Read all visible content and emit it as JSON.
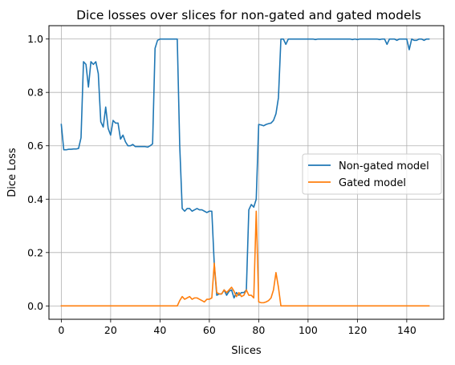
{
  "chart_data": {
    "type": "line",
    "title": "Dice losses over slices for non-gated and gated models",
    "xlabel": "Slices",
    "ylabel": "Dice Loss",
    "xlim": [
      -5,
      155
    ],
    "ylim": [
      -0.05,
      1.05
    ],
    "xticks": [
      0,
      20,
      40,
      60,
      80,
      100,
      120,
      140
    ],
    "yticks": [
      0.0,
      0.2,
      0.4,
      0.6,
      0.8,
      1.0
    ],
    "grid": true,
    "legend_position": "center-right",
    "series": [
      {
        "name": "Non-gated model",
        "color": "#1f77b4",
        "x": [
          0,
          1,
          2,
          3,
          4,
          5,
          6,
          7,
          8,
          9,
          10,
          11,
          12,
          13,
          14,
          15,
          16,
          17,
          18,
          19,
          20,
          21,
          22,
          23,
          24,
          25,
          26,
          27,
          28,
          29,
          30,
          31,
          32,
          33,
          34,
          35,
          36,
          37,
          38,
          39,
          40,
          41,
          42,
          43,
          44,
          45,
          46,
          47,
          48,
          49,
          50,
          51,
          52,
          53,
          54,
          55,
          56,
          57,
          58,
          59,
          60,
          61,
          62,
          63,
          64,
          65,
          66,
          67,
          68,
          69,
          70,
          71,
          72,
          73,
          74,
          75,
          76,
          77,
          78,
          79,
          80,
          81,
          82,
          83,
          84,
          85,
          86,
          87,
          88,
          89,
          90,
          91,
          92,
          93,
          94,
          95,
          96,
          97,
          98,
          99,
          100,
          101,
          102,
          103,
          104,
          105,
          106,
          107,
          108,
          109,
          110,
          111,
          112,
          113,
          114,
          115,
          116,
          117,
          118,
          119,
          120,
          121,
          122,
          123,
          124,
          125,
          126,
          127,
          128,
          129,
          130,
          131,
          132,
          133,
          134,
          135,
          136,
          137,
          138,
          139,
          140,
          141,
          142,
          143,
          144,
          145,
          146,
          147,
          148,
          149
        ],
        "y": [
          0.68,
          0.585,
          0.585,
          0.587,
          0.587,
          0.588,
          0.588,
          0.59,
          0.63,
          0.915,
          0.905,
          0.82,
          0.915,
          0.905,
          0.915,
          0.87,
          0.69,
          0.67,
          0.745,
          0.665,
          0.64,
          0.695,
          0.685,
          0.685,
          0.625,
          0.64,
          0.615,
          0.6,
          0.6,
          0.605,
          0.597,
          0.597,
          0.597,
          0.597,
          0.597,
          0.595,
          0.6,
          0.607,
          0.965,
          0.995,
          1.0,
          1.0,
          1.0,
          1.0,
          1.0,
          1.0,
          1.0,
          1.0,
          0.6,
          0.365,
          0.355,
          0.365,
          0.365,
          0.355,
          0.36,
          0.365,
          0.36,
          0.36,
          0.355,
          0.35,
          0.355,
          0.355,
          0.155,
          0.04,
          0.045,
          0.045,
          0.06,
          0.04,
          0.055,
          0.06,
          0.03,
          0.05,
          0.04,
          0.05,
          0.05,
          0.06,
          0.36,
          0.38,
          0.37,
          0.4,
          0.68,
          0.678,
          0.675,
          0.68,
          0.683,
          0.685,
          0.695,
          0.72,
          0.78,
          1.0,
          1.0,
          0.98,
          1.0,
          1.0,
          1.0,
          1.0,
          1.0,
          1.0,
          1.0,
          1.0,
          1.0,
          1.0,
          1.0,
          0.998,
          1.0,
          1.0,
          1.0,
          1.0,
          1.0,
          1.0,
          1.0,
          1.0,
          1.0,
          1.0,
          1.0,
          1.0,
          1.0,
          1.0,
          0.998,
          1.0,
          0.998,
          1.0,
          1.0,
          1.0,
          1.0,
          1.0,
          1.0,
          1.0,
          1.0,
          0.998,
          1.0,
          1.0,
          0.98,
          1.0,
          1.0,
          1.0,
          0.995,
          1.0,
          1.0,
          1.0,
          1.0,
          0.96,
          1.0,
          0.995,
          0.995,
          1.0,
          1.0,
          0.995,
          1.0,
          1.0
        ]
      },
      {
        "name": "Gated model",
        "color": "#ff7f0e",
        "x": [
          0,
          1,
          2,
          3,
          4,
          5,
          6,
          7,
          8,
          9,
          10,
          11,
          12,
          13,
          14,
          15,
          16,
          17,
          18,
          19,
          20,
          21,
          22,
          23,
          24,
          25,
          26,
          27,
          28,
          29,
          30,
          31,
          32,
          33,
          34,
          35,
          36,
          37,
          38,
          39,
          40,
          41,
          42,
          43,
          44,
          45,
          46,
          47,
          48,
          49,
          50,
          51,
          52,
          53,
          54,
          55,
          56,
          57,
          58,
          59,
          60,
          61,
          62,
          63,
          64,
          65,
          66,
          67,
          68,
          69,
          70,
          71,
          72,
          73,
          74,
          75,
          76,
          77,
          78,
          79,
          80,
          81,
          82,
          83,
          84,
          85,
          86,
          87,
          88,
          89,
          90,
          91,
          92,
          93,
          94,
          95,
          96,
          97,
          98,
          99,
          100,
          101,
          102,
          103,
          104,
          105,
          106,
          107,
          108,
          109,
          110,
          111,
          112,
          113,
          114,
          115,
          116,
          117,
          118,
          119,
          120,
          121,
          122,
          123,
          124,
          125,
          126,
          127,
          128,
          129,
          130,
          131,
          132,
          133,
          134,
          135,
          136,
          137,
          138,
          139,
          140,
          141,
          142,
          143,
          144,
          145,
          146,
          147,
          148,
          149
        ],
        "y": [
          0.0,
          0.0,
          0.0,
          0.0,
          0.0,
          0.0,
          0.0,
          0.0,
          0.0,
          0.0,
          0.0,
          0.0,
          0.0,
          0.0,
          0.0,
          0.0,
          0.0,
          0.0,
          0.0,
          0.0,
          0.0,
          0.0,
          0.0,
          0.0,
          0.0,
          0.0,
          0.0,
          0.0,
          0.0,
          0.0,
          0.0,
          0.0,
          0.0,
          0.0,
          0.0,
          0.0,
          0.0,
          0.0,
          0.0,
          0.0,
          0.0,
          0.0,
          0.0,
          0.0,
          0.0,
          0.0,
          0.0,
          0.0,
          0.02,
          0.035,
          0.025,
          0.03,
          0.035,
          0.025,
          0.03,
          0.03,
          0.025,
          0.02,
          0.015,
          0.025,
          0.025,
          0.03,
          0.16,
          0.05,
          0.045,
          0.045,
          0.06,
          0.05,
          0.06,
          0.07,
          0.055,
          0.035,
          0.05,
          0.035,
          0.04,
          0.06,
          0.04,
          0.04,
          0.03,
          0.355,
          0.015,
          0.012,
          0.012,
          0.015,
          0.02,
          0.03,
          0.06,
          0.125,
          0.07,
          0.0,
          0.0,
          0.0,
          0.0,
          0.0,
          0.0,
          0.0,
          0.0,
          0.0,
          0.0,
          0.0,
          0.0,
          0.0,
          0.0,
          0.0,
          0.0,
          0.0,
          0.0,
          0.0,
          0.0,
          0.0,
          0.0,
          0.0,
          0.0,
          0.0,
          0.0,
          0.0,
          0.0,
          0.0,
          0.0,
          0.0,
          0.0,
          0.0,
          0.0,
          0.0,
          0.0,
          0.0,
          0.0,
          0.0,
          0.0,
          0.0,
          0.0,
          0.0,
          0.0,
          0.0,
          0.0,
          0.0,
          0.0,
          0.0,
          0.0,
          0.0,
          0.0,
          0.0,
          0.0,
          0.0,
          0.0,
          0.0,
          0.0,
          0.0,
          0.0,
          0.0
        ]
      }
    ]
  }
}
